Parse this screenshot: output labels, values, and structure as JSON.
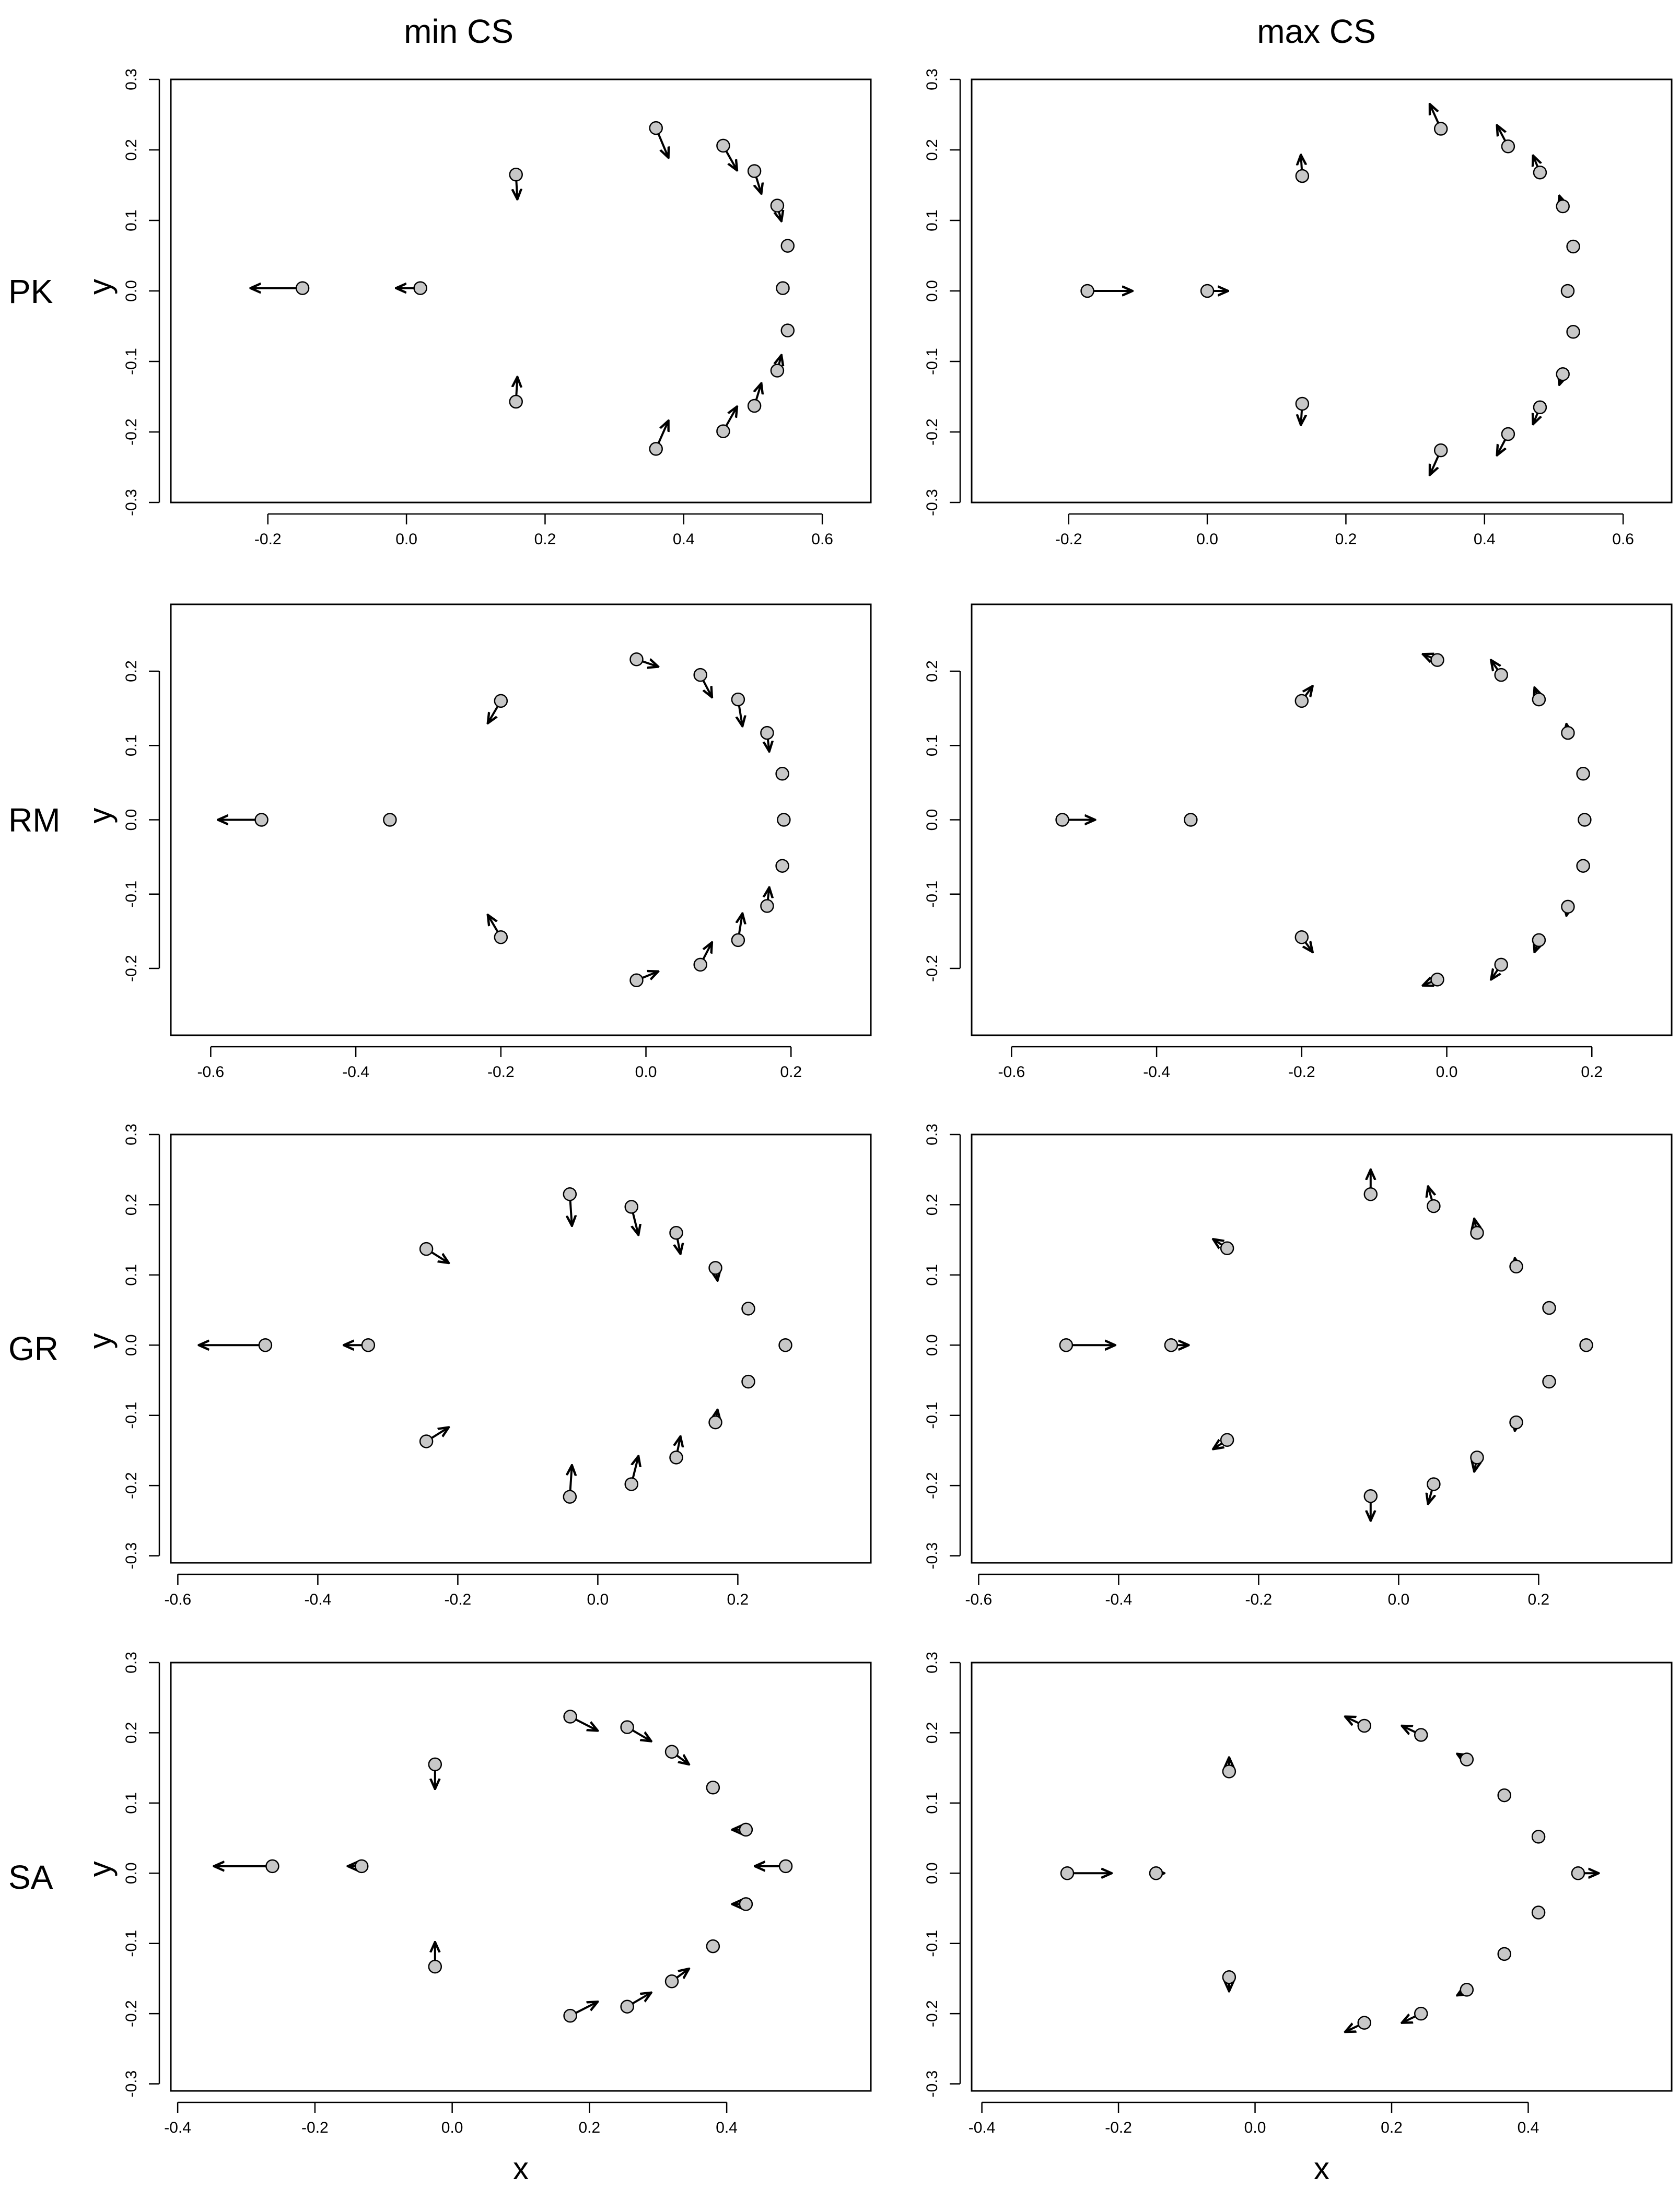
{
  "column_titles": [
    "min CS",
    "max CS"
  ],
  "row_labels": [
    "PK",
    "RM",
    "GR",
    "SA"
  ],
  "axis_labels": {
    "x": "x",
    "y": "y"
  },
  "colors": {
    "point_fill": "#c8c8c8",
    "point_stroke": "#000000",
    "arrow": "#000000",
    "frame": "#000000"
  },
  "chart_data": [
    {
      "type": "scatter",
      "row": 0,
      "col": 0,
      "group": "PK",
      "variant": "min CS",
      "xlim": [
        -0.34,
        0.67
      ],
      "ylim": [
        -0.3,
        0.3
      ],
      "xticks": [
        -0.2,
        0.0,
        0.2,
        0.4,
        0.6
      ],
      "yticks": [
        -0.3,
        -0.2,
        -0.1,
        0.0,
        0.1,
        0.2,
        0.3
      ],
      "xtick_labels": [
        "-0.2",
        "0.0",
        "0.2",
        "0.4",
        "0.6"
      ],
      "ytick_labels": [
        "-0.3",
        "-0.2",
        "-0.1",
        "0.0",
        "0.1",
        "0.2",
        "0.3"
      ],
      "show_xlabel": false,
      "show_ylabel": true,
      "points": [
        {
          "x": -0.15,
          "y": 0.004,
          "dx": -0.075,
          "dy": 0.0
        },
        {
          "x": 0.02,
          "y": 0.004,
          "dx": -0.035,
          "dy": 0.0
        },
        {
          "x": 0.158,
          "y": 0.165,
          "dx": 0.002,
          "dy": -0.035
        },
        {
          "x": 0.158,
          "y": -0.157,
          "dx": 0.002,
          "dy": 0.035
        },
        {
          "x": 0.36,
          "y": 0.231,
          "dx": 0.018,
          "dy": -0.042
        },
        {
          "x": 0.36,
          "y": -0.224,
          "dx": 0.018,
          "dy": 0.04
        },
        {
          "x": 0.457,
          "y": 0.206,
          "dx": 0.02,
          "dy": -0.035
        },
        {
          "x": 0.457,
          "y": -0.199,
          "dx": 0.02,
          "dy": 0.035
        },
        {
          "x": 0.502,
          "y": 0.17,
          "dx": 0.01,
          "dy": -0.032
        },
        {
          "x": 0.502,
          "y": -0.163,
          "dx": 0.01,
          "dy": 0.032
        },
        {
          "x": 0.535,
          "y": 0.121,
          "dx": 0.006,
          "dy": -0.022
        },
        {
          "x": 0.535,
          "y": -0.113,
          "dx": 0.006,
          "dy": 0.022
        },
        {
          "x": 0.55,
          "y": 0.064,
          "dx": 0.0,
          "dy": 0.0
        },
        {
          "x": 0.55,
          "y": -0.056,
          "dx": 0.0,
          "dy": 0.0
        },
        {
          "x": 0.543,
          "y": 0.004,
          "dx": 0.0,
          "dy": 0.0
        }
      ]
    },
    {
      "type": "scatter",
      "row": 0,
      "col": 1,
      "group": "PK",
      "variant": "max CS",
      "xlim": [
        -0.34,
        0.67
      ],
      "ylim": [
        -0.3,
        0.3
      ],
      "xticks": [
        -0.2,
        0.0,
        0.2,
        0.4,
        0.6
      ],
      "yticks": [
        -0.3,
        -0.2,
        -0.1,
        0.0,
        0.1,
        0.2,
        0.3
      ],
      "xtick_labels": [
        "-0.2",
        "0.0",
        "0.2",
        "0.4",
        "0.6"
      ],
      "ytick_labels": [
        "-0.3",
        "-0.2",
        "-0.1",
        "0.0",
        "0.1",
        "0.2",
        "0.3"
      ],
      "show_xlabel": false,
      "show_ylabel": false,
      "points": [
        {
          "x": -0.173,
          "y": 0.0,
          "dx": 0.065,
          "dy": 0.0
        },
        {
          "x": 0.0,
          "y": 0.0,
          "dx": 0.03,
          "dy": 0.0
        },
        {
          "x": 0.137,
          "y": 0.163,
          "dx": -0.002,
          "dy": 0.03
        },
        {
          "x": 0.137,
          "y": -0.16,
          "dx": -0.002,
          "dy": -0.03
        },
        {
          "x": 0.337,
          "y": 0.23,
          "dx": -0.016,
          "dy": 0.035
        },
        {
          "x": 0.337,
          "y": -0.226,
          "dx": -0.016,
          "dy": -0.035
        },
        {
          "x": 0.434,
          "y": 0.205,
          "dx": -0.016,
          "dy": 0.03
        },
        {
          "x": 0.434,
          "y": -0.203,
          "dx": -0.016,
          "dy": -0.03
        },
        {
          "x": 0.48,
          "y": 0.168,
          "dx": -0.01,
          "dy": 0.024
        },
        {
          "x": 0.48,
          "y": -0.165,
          "dx": -0.01,
          "dy": -0.024
        },
        {
          "x": 0.513,
          "y": 0.12,
          "dx": -0.005,
          "dy": 0.015
        },
        {
          "x": 0.513,
          "y": -0.118,
          "dx": -0.005,
          "dy": -0.015
        },
        {
          "x": 0.528,
          "y": 0.063,
          "dx": 0.0,
          "dy": 0.0
        },
        {
          "x": 0.528,
          "y": -0.058,
          "dx": 0.0,
          "dy": 0.0
        },
        {
          "x": 0.52,
          "y": 0.0,
          "dx": 0.0,
          "dy": 0.0
        }
      ]
    },
    {
      "type": "scatter",
      "row": 1,
      "col": 0,
      "group": "RM",
      "variant": "min CS",
      "xlim": [
        -0.655,
        0.31
      ],
      "ylim": [
        -0.29,
        0.29
      ],
      "xticks": [
        -0.6,
        -0.4,
        -0.2,
        0.0,
        0.2
      ],
      "yticks": [
        -0.2,
        -0.1,
        0.0,
        0.1,
        0.2
      ],
      "xtick_labels": [
        "-0.6",
        "-0.4",
        "-0.2",
        "0.0",
        "0.2"
      ],
      "ytick_labels": [
        "-0.2",
        "-0.1",
        "0.0",
        "0.1",
        "0.2"
      ],
      "show_xlabel": false,
      "show_ylabel": true,
      "points": [
        {
          "x": -0.53,
          "y": 0.0,
          "dx": -0.06,
          "dy": 0.0
        },
        {
          "x": -0.353,
          "y": 0.0,
          "dx": 0.0,
          "dy": 0.0
        },
        {
          "x": -0.2,
          "y": 0.16,
          "dx": -0.018,
          "dy": -0.03
        },
        {
          "x": -0.2,
          "y": -0.158,
          "dx": -0.018,
          "dy": 0.03
        },
        {
          "x": -0.013,
          "y": 0.216,
          "dx": 0.03,
          "dy": -0.01
        },
        {
          "x": -0.013,
          "y": -0.216,
          "dx": 0.03,
          "dy": 0.012
        },
        {
          "x": 0.075,
          "y": 0.195,
          "dx": 0.016,
          "dy": -0.03
        },
        {
          "x": 0.075,
          "y": -0.195,
          "dx": 0.016,
          "dy": 0.03
        },
        {
          "x": 0.127,
          "y": 0.162,
          "dx": 0.006,
          "dy": -0.036
        },
        {
          "x": 0.127,
          "y": -0.162,
          "dx": 0.006,
          "dy": 0.036
        },
        {
          "x": 0.167,
          "y": 0.117,
          "dx": 0.003,
          "dy": -0.025
        },
        {
          "x": 0.167,
          "y": -0.116,
          "dx": 0.003,
          "dy": 0.025
        },
        {
          "x": 0.188,
          "y": 0.062,
          "dx": 0.0,
          "dy": 0.0
        },
        {
          "x": 0.188,
          "y": -0.062,
          "dx": 0.0,
          "dy": 0.0
        },
        {
          "x": 0.19,
          "y": 0.0,
          "dx": 0.0,
          "dy": 0.0
        }
      ]
    },
    {
      "type": "scatter",
      "row": 1,
      "col": 1,
      "group": "RM",
      "variant": "max CS",
      "xlim": [
        -0.655,
        0.31
      ],
      "ylim": [
        -0.29,
        0.29
      ],
      "xticks": [
        -0.6,
        -0.4,
        -0.2,
        0.0,
        0.2
      ],
      "yticks": [
        -0.2,
        -0.1,
        0.0,
        0.1,
        0.2
      ],
      "xtick_labels": [
        "-0.6",
        "-0.4",
        "-0.2",
        "0.0",
        "0.2"
      ],
      "ytick_labels": [
        "-0.2",
        "-0.1",
        "0.0",
        "0.1",
        "0.2"
      ],
      "show_xlabel": false,
      "show_ylabel": false,
      "points": [
        {
          "x": -0.53,
          "y": 0.0,
          "dx": 0.045,
          "dy": 0.0
        },
        {
          "x": -0.353,
          "y": 0.0,
          "dx": 0.0,
          "dy": 0.0
        },
        {
          "x": -0.2,
          "y": 0.16,
          "dx": 0.015,
          "dy": 0.02
        },
        {
          "x": -0.2,
          "y": -0.158,
          "dx": 0.015,
          "dy": -0.02
        },
        {
          "x": -0.013,
          "y": 0.215,
          "dx": -0.02,
          "dy": 0.008
        },
        {
          "x": -0.013,
          "y": -0.215,
          "dx": -0.02,
          "dy": -0.008
        },
        {
          "x": 0.075,
          "y": 0.195,
          "dx": -0.014,
          "dy": 0.02
        },
        {
          "x": 0.075,
          "y": -0.195,
          "dx": -0.014,
          "dy": -0.02
        },
        {
          "x": 0.127,
          "y": 0.162,
          "dx": -0.006,
          "dy": 0.016
        },
        {
          "x": 0.127,
          "y": -0.162,
          "dx": -0.006,
          "dy": -0.016
        },
        {
          "x": 0.167,
          "y": 0.117,
          "dx": -0.002,
          "dy": 0.012
        },
        {
          "x": 0.167,
          "y": -0.117,
          "dx": -0.002,
          "dy": -0.012
        },
        {
          "x": 0.188,
          "y": 0.062,
          "dx": 0.0,
          "dy": 0.0
        },
        {
          "x": 0.188,
          "y": -0.062,
          "dx": 0.0,
          "dy": 0.0
        },
        {
          "x": 0.19,
          "y": 0.0,
          "dx": 0.0,
          "dy": 0.0
        }
      ]
    },
    {
      "type": "scatter",
      "row": 2,
      "col": 0,
      "group": "GR",
      "variant": "min CS",
      "xlim": [
        -0.61,
        0.39
      ],
      "ylim": [
        -0.31,
        0.3
      ],
      "xticks": [
        -0.6,
        -0.4,
        -0.2,
        0.0,
        0.2
      ],
      "yticks": [
        -0.3,
        -0.2,
        -0.1,
        0.0,
        0.1,
        0.2,
        0.3
      ],
      "xtick_labels": [
        "-0.6",
        "-0.4",
        "-0.2",
        "0.0",
        "0.2"
      ],
      "ytick_labels": [
        "-0.3",
        "-0.2",
        "-0.1",
        "0.0",
        "0.1",
        "0.2",
        "0.3"
      ],
      "show_xlabel": false,
      "show_ylabel": true,
      "points": [
        {
          "x": -0.475,
          "y": 0.0,
          "dx": -0.095,
          "dy": 0.0
        },
        {
          "x": -0.328,
          "y": 0.0,
          "dx": -0.035,
          "dy": 0.0
        },
        {
          "x": -0.245,
          "y": 0.137,
          "dx": 0.032,
          "dy": -0.02
        },
        {
          "x": -0.245,
          "y": -0.137,
          "dx": 0.032,
          "dy": 0.02
        },
        {
          "x": -0.04,
          "y": 0.215,
          "dx": 0.003,
          "dy": -0.045
        },
        {
          "x": -0.04,
          "y": -0.216,
          "dx": 0.003,
          "dy": 0.045
        },
        {
          "x": 0.048,
          "y": 0.197,
          "dx": 0.01,
          "dy": -0.04
        },
        {
          "x": 0.048,
          "y": -0.198,
          "dx": 0.01,
          "dy": 0.04
        },
        {
          "x": 0.112,
          "y": 0.16,
          "dx": 0.006,
          "dy": -0.03
        },
        {
          "x": 0.112,
          "y": -0.16,
          "dx": 0.006,
          "dy": 0.03
        },
        {
          "x": 0.168,
          "y": 0.11,
          "dx": 0.003,
          "dy": -0.018
        },
        {
          "x": 0.168,
          "y": -0.11,
          "dx": 0.003,
          "dy": 0.018
        },
        {
          "x": 0.215,
          "y": 0.052,
          "dx": 0.0,
          "dy": 0.0
        },
        {
          "x": 0.215,
          "y": -0.052,
          "dx": 0.0,
          "dy": 0.0
        },
        {
          "x": 0.268,
          "y": 0.0,
          "dx": 0.0,
          "dy": 0.0
        }
      ]
    },
    {
      "type": "scatter",
      "row": 2,
      "col": 1,
      "group": "GR",
      "variant": "max CS",
      "xlim": [
        -0.61,
        0.39
      ],
      "ylim": [
        -0.31,
        0.3
      ],
      "xticks": [
        -0.6,
        -0.4,
        -0.2,
        0.0,
        0.2
      ],
      "yticks": [
        -0.3,
        -0.2,
        -0.1,
        0.0,
        0.1,
        0.2,
        0.3
      ],
      "xtick_labels": [
        "-0.6",
        "-0.4",
        "-0.2",
        "0.0",
        "0.2"
      ],
      "ytick_labels": [
        "-0.3",
        "-0.2",
        "-0.1",
        "0.0",
        "0.1",
        "0.2",
        "0.3"
      ],
      "show_xlabel": false,
      "show_ylabel": false,
      "points": [
        {
          "x": -0.475,
          "y": 0.0,
          "dx": 0.07,
          "dy": 0.0
        },
        {
          "x": -0.325,
          "y": 0.0,
          "dx": 0.025,
          "dy": 0.0
        },
        {
          "x": -0.245,
          "y": 0.138,
          "dx": -0.02,
          "dy": 0.013
        },
        {
          "x": -0.245,
          "y": -0.135,
          "dx": -0.02,
          "dy": -0.013
        },
        {
          "x": -0.04,
          "y": 0.215,
          "dx": 0.0,
          "dy": 0.035
        },
        {
          "x": -0.04,
          "y": -0.215,
          "dx": 0.0,
          "dy": -0.035
        },
        {
          "x": 0.05,
          "y": 0.198,
          "dx": -0.008,
          "dy": 0.028
        },
        {
          "x": 0.05,
          "y": -0.198,
          "dx": -0.008,
          "dy": -0.028
        },
        {
          "x": 0.112,
          "y": 0.16,
          "dx": -0.004,
          "dy": 0.02
        },
        {
          "x": 0.112,
          "y": -0.16,
          "dx": -0.004,
          "dy": -0.02
        },
        {
          "x": 0.168,
          "y": 0.112,
          "dx": -0.002,
          "dy": 0.012
        },
        {
          "x": 0.168,
          "y": -0.11,
          "dx": -0.002,
          "dy": -0.012
        },
        {
          "x": 0.215,
          "y": 0.053,
          "dx": 0.0,
          "dy": 0.0
        },
        {
          "x": 0.215,
          "y": -0.052,
          "dx": 0.0,
          "dy": 0.0
        },
        {
          "x": 0.268,
          "y": 0.0,
          "dx": 0.0,
          "dy": 0.0
        }
      ]
    },
    {
      "type": "scatter",
      "row": 3,
      "col": 0,
      "group": "SA",
      "variant": "min CS",
      "xlim": [
        -0.41,
        0.61
      ],
      "ylim": [
        -0.31,
        0.3
      ],
      "xticks": [
        -0.4,
        -0.2,
        0.0,
        0.2,
        0.4
      ],
      "yticks": [
        -0.3,
        -0.2,
        -0.1,
        0.0,
        0.1,
        0.2,
        0.3
      ],
      "xtick_labels": [
        "-0.4",
        "-0.2",
        "0.0",
        "0.2",
        "0.4"
      ],
      "ytick_labels": [
        "-0.3",
        "-0.2",
        "-0.1",
        "0.0",
        "0.1",
        "0.2",
        "0.3"
      ],
      "show_xlabel": true,
      "show_ylabel": true,
      "points": [
        {
          "x": -0.262,
          "y": 0.01,
          "dx": -0.085,
          "dy": 0.0
        },
        {
          "x": -0.132,
          "y": 0.01,
          "dx": -0.02,
          "dy": 0.0
        },
        {
          "x": -0.025,
          "y": 0.155,
          "dx": 0.0,
          "dy": -0.035
        },
        {
          "x": -0.025,
          "y": -0.133,
          "dx": 0.0,
          "dy": 0.035
        },
        {
          "x": 0.172,
          "y": 0.223,
          "dx": 0.04,
          "dy": -0.02
        },
        {
          "x": 0.172,
          "y": -0.203,
          "dx": 0.04,
          "dy": 0.02
        },
        {
          "x": 0.255,
          "y": 0.208,
          "dx": 0.035,
          "dy": -0.02
        },
        {
          "x": 0.255,
          "y": -0.19,
          "dx": 0.035,
          "dy": 0.02
        },
        {
          "x": 0.32,
          "y": 0.173,
          "dx": 0.025,
          "dy": -0.018
        },
        {
          "x": 0.32,
          "y": -0.154,
          "dx": 0.025,
          "dy": 0.018
        },
        {
          "x": 0.38,
          "y": 0.122,
          "dx": 0.0,
          "dy": 0.0
        },
        {
          "x": 0.38,
          "y": -0.104,
          "dx": 0.0,
          "dy": 0.0
        },
        {
          "x": 0.428,
          "y": 0.062,
          "dx": -0.02,
          "dy": 0.0
        },
        {
          "x": 0.428,
          "y": -0.044,
          "dx": -0.02,
          "dy": 0.0
        },
        {
          "x": 0.486,
          "y": 0.01,
          "dx": -0.045,
          "dy": 0.0
        }
      ]
    },
    {
      "type": "scatter",
      "row": 3,
      "col": 1,
      "group": "SA",
      "variant": "max CS",
      "xlim": [
        -0.415,
        0.61
      ],
      "ylim": [
        -0.31,
        0.3
      ],
      "xticks": [
        -0.4,
        -0.2,
        0.0,
        0.2,
        0.4
      ],
      "yticks": [
        -0.3,
        -0.2,
        -0.1,
        0.0,
        0.1,
        0.2,
        0.3
      ],
      "xtick_labels": [
        "-0.4",
        "-0.2",
        "0.0",
        "0.2",
        "0.4"
      ],
      "ytick_labels": [
        "-0.3",
        "-0.2",
        "-0.1",
        "0.0",
        "0.1",
        "0.2",
        "0.3"
      ],
      "show_xlabel": true,
      "show_ylabel": false,
      "points": [
        {
          "x": -0.275,
          "y": 0.0,
          "dx": 0.065,
          "dy": 0.0
        },
        {
          "x": -0.145,
          "y": 0.0,
          "dx": 0.012,
          "dy": 0.0
        },
        {
          "x": -0.038,
          "y": 0.145,
          "dx": 0.0,
          "dy": 0.02
        },
        {
          "x": -0.038,
          "y": -0.148,
          "dx": 0.0,
          "dy": -0.02
        },
        {
          "x": 0.16,
          "y": 0.21,
          "dx": -0.028,
          "dy": 0.013
        },
        {
          "x": 0.16,
          "y": -0.213,
          "dx": -0.028,
          "dy": -0.013
        },
        {
          "x": 0.243,
          "y": 0.197,
          "dx": -0.028,
          "dy": 0.013
        },
        {
          "x": 0.243,
          "y": -0.2,
          "dx": -0.028,
          "dy": -0.013
        },
        {
          "x": 0.31,
          "y": 0.162,
          "dx": -0.014,
          "dy": 0.008
        },
        {
          "x": 0.31,
          "y": -0.166,
          "dx": -0.014,
          "dy": -0.008
        },
        {
          "x": 0.365,
          "y": 0.111,
          "dx": 0.0,
          "dy": 0.0
        },
        {
          "x": 0.365,
          "y": -0.115,
          "dx": 0.0,
          "dy": 0.0
        },
        {
          "x": 0.415,
          "y": 0.052,
          "dx": 0.008,
          "dy": 0.0
        },
        {
          "x": 0.415,
          "y": -0.056,
          "dx": 0.008,
          "dy": 0.0
        },
        {
          "x": 0.473,
          "y": 0.0,
          "dx": 0.03,
          "dy": 0.0
        }
      ]
    }
  ]
}
